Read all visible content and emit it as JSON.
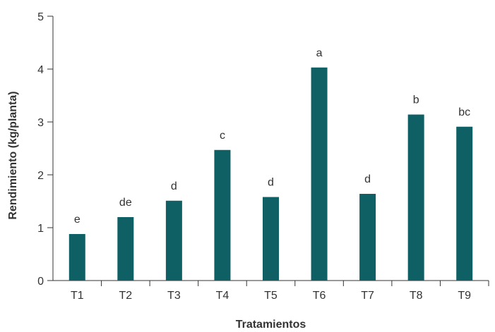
{
  "chart_data": {
    "type": "bar",
    "categories": [
      "T1",
      "T2",
      "T3",
      "T4",
      "T5",
      "T6",
      "T7",
      "T8",
      "T9"
    ],
    "values": [
      0.88,
      1.2,
      1.51,
      2.47,
      1.58,
      4.03,
      1.64,
      3.14,
      2.91
    ],
    "data_labels": [
      "e",
      "de",
      "d",
      "c",
      "d",
      "a",
      "d",
      "b",
      "bc"
    ],
    "title": "",
    "xlabel": "Tratamientos",
    "ylabel": "Rendimiento (kg/planta)",
    "ylim": [
      0,
      5
    ],
    "yticks": [
      0,
      1,
      2,
      3,
      4,
      5
    ],
    "grid": false,
    "bar_color": "#0f6064"
  }
}
